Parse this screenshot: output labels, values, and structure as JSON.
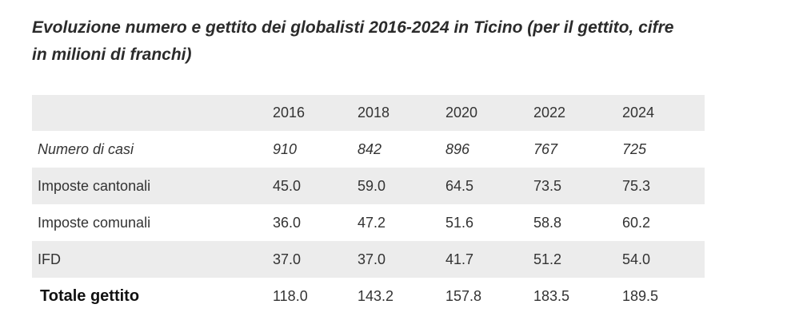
{
  "title": "Evoluzione numero e gettito dei globalisti 2016-2024 in Ticino (per il gettito, cifre in milioni di franchi)",
  "table": {
    "years": [
      "2016",
      "2018",
      "2020",
      "2022",
      "2024"
    ],
    "rows": [
      {
        "label": "Numero di casi",
        "values": [
          "910",
          "842",
          "896",
          "767",
          "725"
        ]
      },
      {
        "label": "Imposte cantonali",
        "values": [
          "45.0",
          "59.0",
          "64.5",
          "73.5",
          "75.3"
        ]
      },
      {
        "label": "Imposte comunali",
        "values": [
          "36.0",
          "47.2",
          "51.6",
          "58.8",
          "60.2"
        ]
      },
      {
        "label": "IFD",
        "values": [
          "37.0",
          "37.0",
          "41.7",
          "51.2",
          "54.0"
        ]
      },
      {
        "label": "Totale gettito",
        "values": [
          "118.0",
          "143.2",
          "157.8",
          "183.5",
          "189.5"
        ]
      }
    ]
  },
  "colors": {
    "row_shade": "#ececec",
    "text": "#333333",
    "title": "#2b2b2b"
  }
}
